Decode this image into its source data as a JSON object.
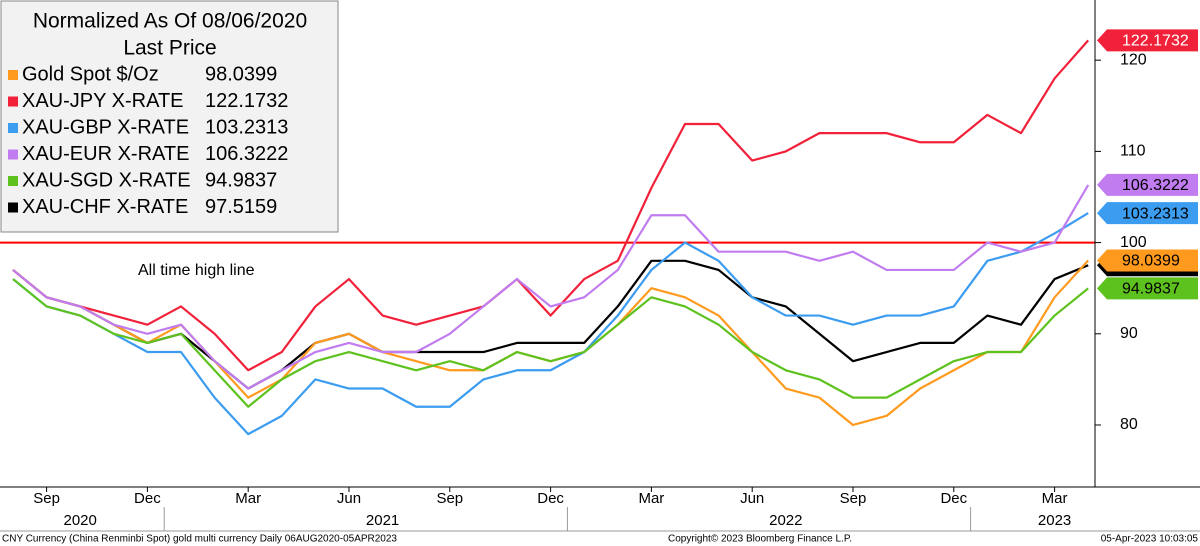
{
  "chart_data": {
    "type": "line",
    "legend_title": "Normalized As Of 08/06/2020",
    "legend_subtitle": "Last Price",
    "x": [
      "2020-08",
      "2020-09",
      "2020-10",
      "2020-11",
      "2020-12",
      "2021-01",
      "2021-02",
      "2021-03",
      "2021-04",
      "2021-05",
      "2021-06",
      "2021-07",
      "2021-08",
      "2021-09",
      "2021-10",
      "2021-11",
      "2021-12",
      "2022-01",
      "2022-02",
      "2022-03",
      "2022-04",
      "2022-05",
      "2022-06",
      "2022-07",
      "2022-08",
      "2022-09",
      "2022-10",
      "2022-11",
      "2022-12",
      "2023-01",
      "2023-02",
      "2023-03",
      "2023-04"
    ],
    "series": [
      {
        "name": "XAU-CHF X-RATE",
        "color": "#000000",
        "label_color": "#ffffff",
        "values": [
          97,
          94,
          93,
          91,
          89,
          90,
          87,
          84,
          86,
          89,
          90,
          88,
          88,
          88,
          88,
          89,
          89,
          89,
          93,
          98,
          98,
          97,
          94,
          93,
          90,
          87,
          88,
          89,
          89,
          92,
          91,
          96,
          97.5159
        ]
      },
      {
        "name": "Gold Spot $/Oz",
        "color": "#ff9a1e",
        "label_color": "#000000",
        "values": [
          97,
          94,
          93,
          91,
          89,
          91,
          87,
          83,
          85,
          89,
          90,
          88,
          87,
          86,
          86,
          88,
          87,
          88,
          91,
          95,
          94,
          92,
          88,
          84,
          83,
          80,
          81,
          84,
          86,
          88,
          88,
          94,
          98.0399
        ]
      },
      {
        "name": "XAU-JPY X-RATE",
        "color": "#f2213a",
        "label_color": "#ffffff",
        "values": [
          97,
          94,
          93,
          92,
          91,
          93,
          90,
          86,
          88,
          93,
          96,
          92,
          91,
          92,
          93,
          96,
          92,
          96,
          98,
          106,
          113,
          113,
          109,
          110,
          112,
          112,
          112,
          111,
          111,
          114,
          112,
          118,
          122.1732
        ]
      },
      {
        "name": "XAU-GBP X-RATE",
        "color": "#3b9cf0",
        "label_color": "#000000",
        "values": [
          96,
          93,
          92,
          90,
          88,
          88,
          83,
          79,
          81,
          85,
          84,
          84,
          82,
          82,
          85,
          86,
          86,
          88,
          92,
          97,
          100,
          98,
          94,
          92,
          92,
          91,
          92,
          92,
          93,
          98,
          99,
          101,
          103.2313
        ]
      },
      {
        "name": "XAU-EUR X-RATE",
        "color": "#c17cf0",
        "label_color": "#000000",
        "values": [
          97,
          94,
          93,
          91,
          90,
          91,
          87,
          84,
          86,
          88,
          89,
          88,
          88,
          90,
          93,
          96,
          93,
          94,
          97,
          103,
          103,
          99,
          99,
          99,
          98,
          99,
          97,
          97,
          97,
          100,
          99,
          100,
          106.3222
        ]
      },
      {
        "name": "XAU-SGD X-RATE",
        "color": "#5ec21e",
        "label_color": "#000000",
        "values": [
          96,
          93,
          92,
          90,
          89,
          90,
          86,
          82,
          85,
          87,
          88,
          87,
          86,
          87,
          86,
          88,
          87,
          88,
          91,
          94,
          93,
          91,
          88,
          86,
          85,
          83,
          83,
          85,
          87,
          88,
          88,
          92,
          94.9837
        ]
      }
    ],
    "legend_order": [
      1,
      2,
      3,
      4,
      5,
      0
    ],
    "ylim": [
      73.2,
      126.6
    ],
    "yticks": [
      80,
      90,
      100,
      110,
      120
    ],
    "xticks": [
      {
        "value": "2020-09",
        "label": "Sep"
      },
      {
        "value": "2020-12",
        "label": "Dec"
      },
      {
        "value": "2021-03",
        "label": "Mar"
      },
      {
        "value": "2021-06",
        "label": "Jun"
      },
      {
        "value": "2021-09",
        "label": "Sep"
      },
      {
        "value": "2021-12",
        "label": "Dec"
      },
      {
        "value": "2022-03",
        "label": "Mar"
      },
      {
        "value": "2022-06",
        "label": "Jun"
      },
      {
        "value": "2022-09",
        "label": "Sep"
      },
      {
        "value": "2022-12",
        "label": "Dec"
      },
      {
        "value": "2023-03",
        "label": "Mar"
      }
    ],
    "year_labels": [
      {
        "value": "2020-10",
        "label": "2020"
      },
      {
        "value": "2021-07",
        "label": "2021"
      },
      {
        "value": "2022-07",
        "label": "2022"
      },
      {
        "value": "2023-03",
        "label": "2023"
      }
    ],
    "reference_line": {
      "value": 100,
      "color": "#ff0000",
      "label": "All time high line"
    },
    "grid": false,
    "footer_left": "CNY Currency (China Renminbi Spot) gold multi currency  Daily 06AUG2020-05APR2023",
    "footer_center": "Copyright© 2023 Bloomberg Finance L.P.",
    "footer_right": "05-Apr-2023 10:03:05"
  }
}
